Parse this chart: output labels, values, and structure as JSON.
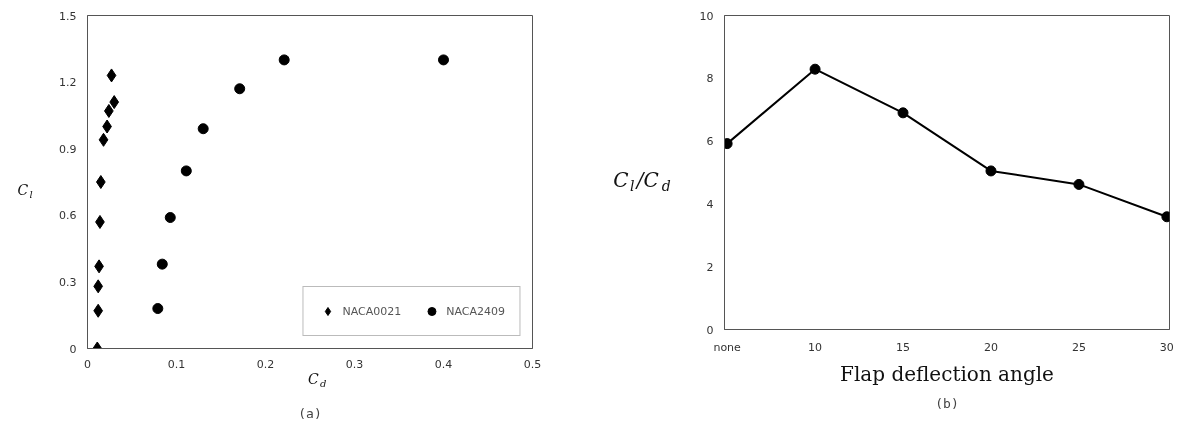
{
  "chart_data": [
    {
      "type": "scatter",
      "xlabel": "C$_{d}$",
      "ylabel": "C$_{l}$",
      "annotations": [
        "(a)"
      ],
      "xlim": [
        0,
        0.5
      ],
      "xticks": [
        0,
        0.1,
        0.2,
        0.3,
        0.4,
        0.5
      ],
      "ylim": [
        0,
        1.5
      ],
      "yticks": [
        0,
        0.3,
        0.6,
        0.9,
        1.2,
        1.5
      ],
      "grid": false,
      "legend": "bottom right",
      "series": [
        {
          "name": "NACA0021",
          "color": "#000000",
          "marker": "diamond",
          "x": [
            0.011,
            0.012,
            0.012,
            0.013,
            0.014,
            0.015,
            0.018,
            0.022,
            0.024,
            0.03,
            0.027
          ],
          "values": [
            0,
            0.17,
            0.28,
            0.37,
            0.57,
            0.75,
            0.94,
            1.0,
            1.07,
            1.11,
            1.23
          ]
        },
        {
          "name": "NACA2409",
          "color": "#000000",
          "marker": "circle",
          "x": [
            0.079,
            0.084,
            0.093,
            0.111,
            0.13,
            0.171,
            0.221,
            0.4
          ],
          "values": [
            0.18,
            0.38,
            0.59,
            0.8,
            0.99,
            1.17,
            1.3,
            1.3
          ]
        }
      ]
    },
    {
      "type": "line",
      "xlabel": "Flap deflection angle",
      "ylabel": "C$_{l}$/C$_{d}$",
      "annotations": [
        "(b)"
      ],
      "categories": [
        "none",
        "10",
        "15",
        "20",
        "25",
        "30"
      ],
      "ylim": [
        0,
        10
      ],
      "yticks": [
        0,
        2,
        4,
        6,
        8,
        10
      ],
      "grid": false,
      "marker": "circle",
      "line_style": "solid",
      "series": [
        {
          "color": "#000000",
          "values": [
            5.92,
            8.29,
            6.9,
            5.05,
            4.62,
            3.59
          ]
        }
      ]
    }
  ]
}
